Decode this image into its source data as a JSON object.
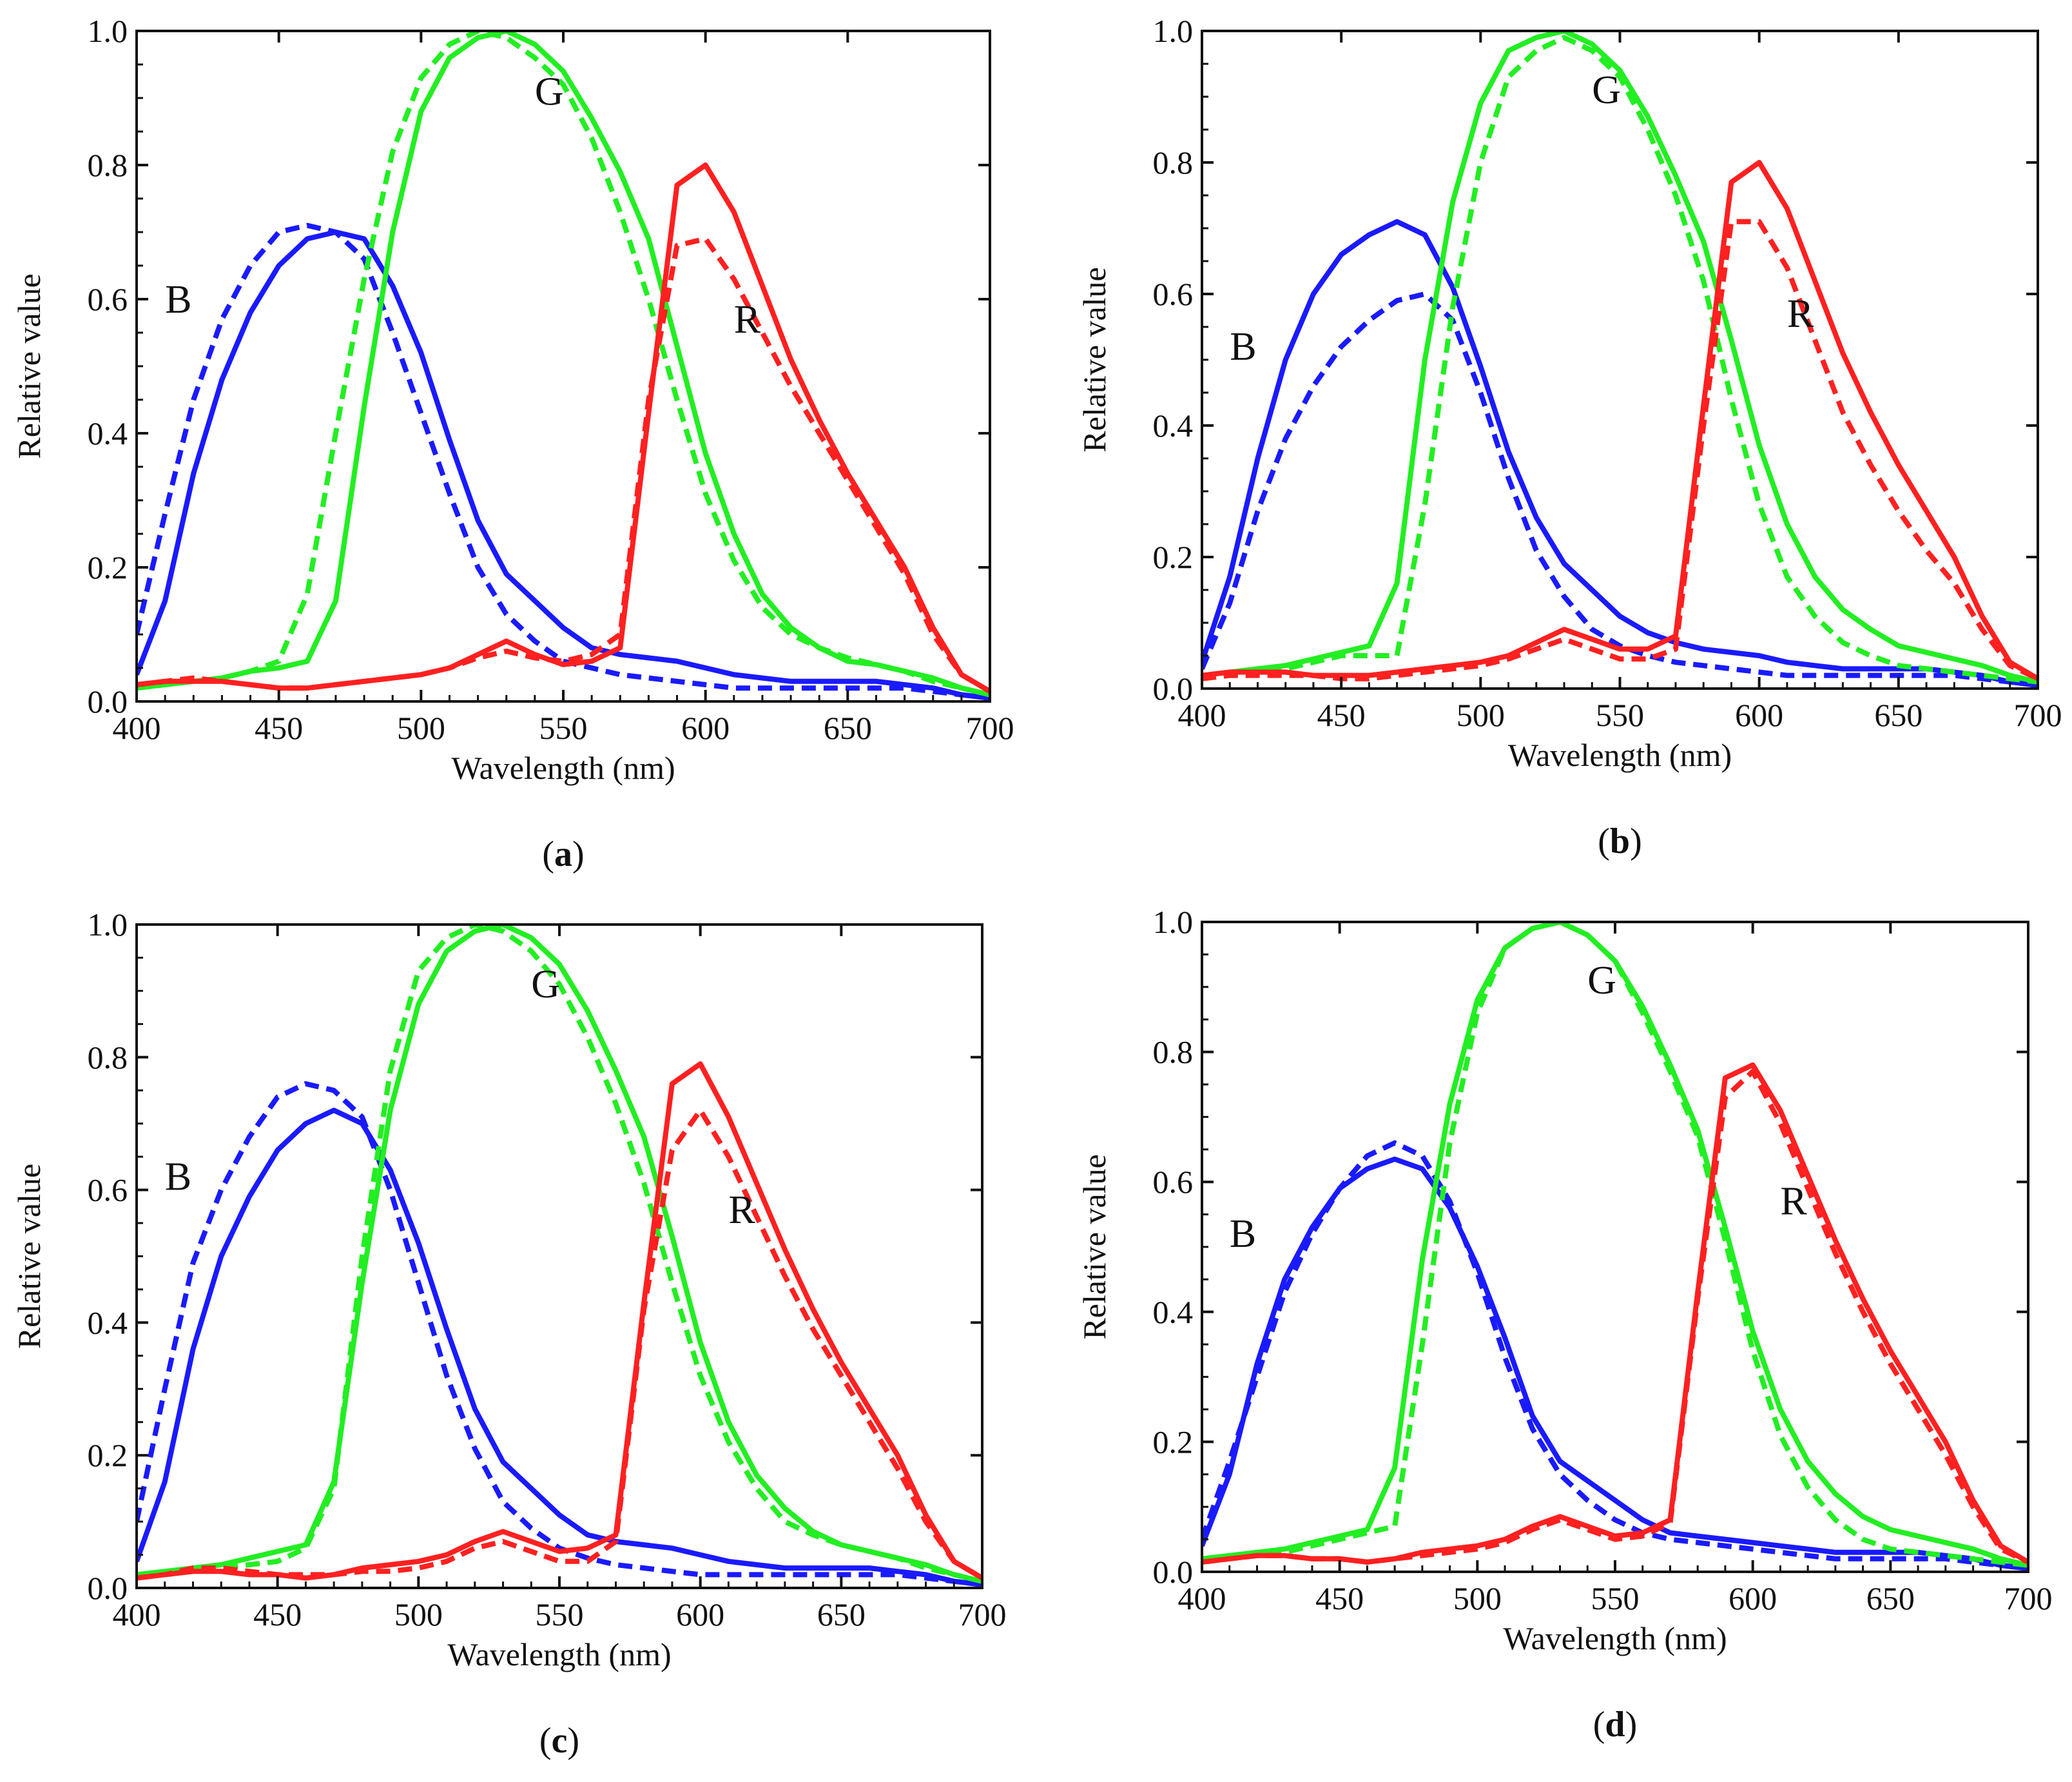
{
  "figure": {
    "xlabel": "Wavelength (nm)",
    "ylabel": "Relative value",
    "xlim": [
      400,
      700
    ],
    "ylim": [
      0,
      1.0
    ],
    "xticks": [
      "400",
      "450",
      "500",
      "550",
      "600",
      "650",
      "700"
    ],
    "yticks": [
      "0.0",
      "0.2",
      "0.4",
      "0.6",
      "0.8",
      "1.0"
    ],
    "colors": {
      "B": "#1a1aff",
      "G": "#22ee22",
      "R": "#ff2020"
    }
  },
  "chart_data": [
    {
      "type": "line",
      "panel": "a",
      "caption_letter": "a",
      "labels": {
        "B": "B",
        "G": "G",
        "R": "R"
      },
      "label_anchor": {
        "B": [
          410,
          0.58
        ],
        "G": [
          540,
          0.89
        ],
        "R": [
          610,
          0.55
        ]
      },
      "x": [
        400,
        410,
        420,
        430,
        440,
        450,
        460,
        470,
        480,
        490,
        500,
        510,
        520,
        530,
        540,
        550,
        560,
        570,
        580,
        590,
        600,
        610,
        620,
        630,
        640,
        650,
        660,
        670,
        680,
        690,
        700
      ],
      "series": [
        {
          "name": "B",
          "style": "solid",
          "values": [
            0.04,
            0.15,
            0.34,
            0.48,
            0.58,
            0.65,
            0.69,
            0.7,
            0.69,
            0.62,
            0.52,
            0.39,
            0.27,
            0.19,
            0.15,
            0.11,
            0.08,
            0.07,
            0.065,
            0.06,
            0.05,
            0.04,
            0.035,
            0.03,
            0.03,
            0.03,
            0.03,
            0.025,
            0.02,
            0.01,
            0.005
          ]
        },
        {
          "name": "B",
          "style": "dashed",
          "values": [
            0.1,
            0.28,
            0.45,
            0.57,
            0.65,
            0.7,
            0.71,
            0.7,
            0.66,
            0.55,
            0.43,
            0.31,
            0.2,
            0.13,
            0.09,
            0.06,
            0.05,
            0.04,
            0.035,
            0.03,
            0.025,
            0.02,
            0.02,
            0.02,
            0.02,
            0.02,
            0.02,
            0.02,
            0.015,
            0.01,
            0.005
          ]
        },
        {
          "name": "G",
          "style": "solid",
          "values": [
            0.02,
            0.025,
            0.03,
            0.035,
            0.045,
            0.05,
            0.06,
            0.15,
            0.44,
            0.7,
            0.88,
            0.96,
            0.99,
            1.0,
            0.98,
            0.94,
            0.87,
            0.79,
            0.69,
            0.53,
            0.37,
            0.25,
            0.16,
            0.11,
            0.08,
            0.06,
            0.055,
            0.045,
            0.035,
            0.02,
            0.01
          ]
        },
        {
          "name": "G",
          "style": "dashed",
          "values": [
            0.02,
            0.025,
            0.03,
            0.035,
            0.045,
            0.06,
            0.16,
            0.4,
            0.63,
            0.82,
            0.93,
            0.98,
            1.0,
            0.99,
            0.96,
            0.92,
            0.84,
            0.73,
            0.6,
            0.45,
            0.31,
            0.21,
            0.14,
            0.1,
            0.08,
            0.065,
            0.055,
            0.045,
            0.03,
            0.02,
            0.01
          ]
        },
        {
          "name": "R",
          "style": "solid",
          "values": [
            0.025,
            0.03,
            0.03,
            0.03,
            0.025,
            0.02,
            0.02,
            0.025,
            0.03,
            0.035,
            0.04,
            0.05,
            0.07,
            0.09,
            0.07,
            0.055,
            0.06,
            0.08,
            0.43,
            0.77,
            0.8,
            0.73,
            0.62,
            0.51,
            0.42,
            0.34,
            0.27,
            0.2,
            0.11,
            0.04,
            0.015
          ]
        },
        {
          "name": "R",
          "style": "dashed",
          "values": [
            0.025,
            0.03,
            0.035,
            0.03,
            0.025,
            0.02,
            0.02,
            0.025,
            0.03,
            0.035,
            0.04,
            0.05,
            0.065,
            0.075,
            0.065,
            0.06,
            0.07,
            0.1,
            0.45,
            0.68,
            0.69,
            0.63,
            0.55,
            0.47,
            0.4,
            0.33,
            0.26,
            0.19,
            0.1,
            0.04,
            0.015
          ]
        }
      ]
    },
    {
      "type": "line",
      "panel": "b",
      "caption_letter": "b",
      "labels": {
        "B": "B",
        "G": "G",
        "R": "R"
      },
      "label_anchor": {
        "B": [
          410,
          0.5
        ],
        "G": [
          540,
          0.89
        ],
        "R": [
          610,
          0.55
        ]
      },
      "x": [
        400,
        410,
        420,
        430,
        440,
        450,
        460,
        470,
        480,
        490,
        500,
        510,
        520,
        530,
        540,
        550,
        560,
        570,
        580,
        590,
        600,
        610,
        620,
        630,
        640,
        650,
        660,
        670,
        680,
        690,
        700
      ],
      "series": [
        {
          "name": "B",
          "style": "solid",
          "values": [
            0.04,
            0.17,
            0.35,
            0.5,
            0.6,
            0.66,
            0.69,
            0.71,
            0.69,
            0.61,
            0.49,
            0.36,
            0.26,
            0.19,
            0.15,
            0.11,
            0.085,
            0.07,
            0.06,
            0.055,
            0.05,
            0.04,
            0.035,
            0.03,
            0.03,
            0.03,
            0.03,
            0.025,
            0.02,
            0.01,
            0.005
          ]
        },
        {
          "name": "B",
          "style": "dashed",
          "values": [
            0.03,
            0.13,
            0.27,
            0.38,
            0.46,
            0.52,
            0.56,
            0.59,
            0.6,
            0.56,
            0.45,
            0.32,
            0.21,
            0.14,
            0.09,
            0.065,
            0.05,
            0.04,
            0.035,
            0.03,
            0.025,
            0.02,
            0.02,
            0.02,
            0.02,
            0.02,
            0.02,
            0.02,
            0.015,
            0.01,
            0.005
          ]
        },
        {
          "name": "G",
          "style": "solid",
          "values": [
            0.02,
            0.025,
            0.03,
            0.035,
            0.045,
            0.055,
            0.065,
            0.16,
            0.5,
            0.74,
            0.89,
            0.97,
            0.99,
            1.0,
            0.98,
            0.94,
            0.87,
            0.78,
            0.68,
            0.53,
            0.37,
            0.25,
            0.17,
            0.12,
            0.09,
            0.065,
            0.055,
            0.045,
            0.035,
            0.02,
            0.01
          ]
        },
        {
          "name": "G",
          "style": "dashed",
          "values": [
            0.015,
            0.02,
            0.025,
            0.03,
            0.04,
            0.05,
            0.05,
            0.05,
            0.28,
            0.58,
            0.8,
            0.93,
            0.97,
            0.99,
            0.97,
            0.93,
            0.85,
            0.75,
            0.62,
            0.44,
            0.28,
            0.17,
            0.11,
            0.07,
            0.05,
            0.035,
            0.03,
            0.025,
            0.02,
            0.015,
            0.01
          ]
        },
        {
          "name": "R",
          "style": "solid",
          "values": [
            0.02,
            0.025,
            0.025,
            0.025,
            0.02,
            0.02,
            0.02,
            0.025,
            0.03,
            0.035,
            0.04,
            0.05,
            0.07,
            0.09,
            0.075,
            0.06,
            0.06,
            0.08,
            0.43,
            0.77,
            0.8,
            0.73,
            0.62,
            0.51,
            0.42,
            0.34,
            0.27,
            0.2,
            0.11,
            0.04,
            0.015
          ]
        },
        {
          "name": "R",
          "style": "dashed",
          "values": [
            0.015,
            0.02,
            0.02,
            0.02,
            0.02,
            0.015,
            0.015,
            0.02,
            0.025,
            0.03,
            0.035,
            0.045,
            0.06,
            0.075,
            0.06,
            0.045,
            0.045,
            0.06,
            0.4,
            0.71,
            0.71,
            0.64,
            0.53,
            0.42,
            0.34,
            0.27,
            0.21,
            0.16,
            0.09,
            0.035,
            0.015
          ]
        }
      ]
    },
    {
      "type": "line",
      "panel": "c",
      "caption_letter": "c",
      "labels": {
        "B": "B",
        "G": "G",
        "R": "R"
      },
      "label_anchor": {
        "B": [
          410,
          0.6
        ],
        "G": [
          540,
          0.89
        ],
        "R": [
          610,
          0.55
        ]
      },
      "x": [
        400,
        410,
        420,
        430,
        440,
        450,
        460,
        470,
        480,
        490,
        500,
        510,
        520,
        530,
        540,
        550,
        560,
        570,
        580,
        590,
        600,
        610,
        620,
        630,
        640,
        650,
        660,
        670,
        680,
        690,
        700
      ],
      "series": [
        {
          "name": "B",
          "style": "solid",
          "values": [
            0.04,
            0.16,
            0.36,
            0.5,
            0.59,
            0.66,
            0.7,
            0.72,
            0.7,
            0.63,
            0.52,
            0.39,
            0.27,
            0.19,
            0.15,
            0.11,
            0.08,
            0.07,
            0.065,
            0.06,
            0.05,
            0.04,
            0.035,
            0.03,
            0.03,
            0.03,
            0.03,
            0.025,
            0.02,
            0.01,
            0.005
          ]
        },
        {
          "name": "B",
          "style": "dashed",
          "values": [
            0.1,
            0.3,
            0.49,
            0.6,
            0.68,
            0.74,
            0.76,
            0.75,
            0.71,
            0.6,
            0.46,
            0.32,
            0.21,
            0.13,
            0.09,
            0.06,
            0.045,
            0.035,
            0.03,
            0.025,
            0.02,
            0.02,
            0.02,
            0.02,
            0.02,
            0.02,
            0.02,
            0.02,
            0.015,
            0.01,
            0.005
          ]
        },
        {
          "name": "G",
          "style": "solid",
          "values": [
            0.02,
            0.025,
            0.03,
            0.035,
            0.045,
            0.055,
            0.065,
            0.16,
            0.46,
            0.72,
            0.88,
            0.96,
            0.99,
            1.0,
            0.98,
            0.94,
            0.87,
            0.78,
            0.68,
            0.53,
            0.37,
            0.25,
            0.17,
            0.12,
            0.085,
            0.065,
            0.055,
            0.045,
            0.035,
            0.02,
            0.01
          ]
        },
        {
          "name": "G",
          "style": "dashed",
          "values": [
            0.02,
            0.02,
            0.025,
            0.03,
            0.035,
            0.04,
            0.06,
            0.15,
            0.5,
            0.78,
            0.93,
            0.98,
            1.0,
            0.99,
            0.96,
            0.91,
            0.83,
            0.73,
            0.61,
            0.46,
            0.32,
            0.22,
            0.15,
            0.1,
            0.08,
            0.065,
            0.055,
            0.045,
            0.03,
            0.02,
            0.01
          ]
        },
        {
          "name": "R",
          "style": "solid",
          "values": [
            0.015,
            0.02,
            0.025,
            0.025,
            0.02,
            0.02,
            0.015,
            0.02,
            0.03,
            0.035,
            0.04,
            0.05,
            0.07,
            0.085,
            0.07,
            0.055,
            0.06,
            0.08,
            0.43,
            0.76,
            0.79,
            0.71,
            0.61,
            0.51,
            0.42,
            0.34,
            0.27,
            0.2,
            0.11,
            0.04,
            0.015
          ]
        },
        {
          "name": "R",
          "style": "dashed",
          "values": [
            0.015,
            0.02,
            0.03,
            0.03,
            0.025,
            0.02,
            0.02,
            0.02,
            0.025,
            0.025,
            0.03,
            0.04,
            0.06,
            0.07,
            0.055,
            0.04,
            0.04,
            0.07,
            0.42,
            0.66,
            0.72,
            0.65,
            0.56,
            0.47,
            0.39,
            0.32,
            0.25,
            0.18,
            0.1,
            0.04,
            0.015
          ]
        }
      ]
    },
    {
      "type": "line",
      "panel": "d",
      "caption_letter": "d",
      "labels": {
        "B": "B",
        "G": "G",
        "R": "R"
      },
      "label_anchor": {
        "B": [
          410,
          0.5
        ],
        "G": [
          540,
          0.89
        ],
        "R": [
          610,
          0.55
        ]
      },
      "x": [
        400,
        410,
        420,
        430,
        440,
        450,
        460,
        470,
        480,
        490,
        500,
        510,
        520,
        530,
        540,
        550,
        560,
        570,
        580,
        590,
        600,
        610,
        620,
        630,
        640,
        650,
        660,
        670,
        680,
        690,
        700
      ],
      "series": [
        {
          "name": "B",
          "style": "solid",
          "values": [
            0.04,
            0.15,
            0.32,
            0.45,
            0.53,
            0.59,
            0.62,
            0.635,
            0.62,
            0.56,
            0.47,
            0.36,
            0.24,
            0.17,
            0.14,
            0.11,
            0.08,
            0.06,
            0.055,
            0.05,
            0.045,
            0.04,
            0.035,
            0.03,
            0.03,
            0.03,
            0.03,
            0.025,
            0.02,
            0.01,
            0.005
          ]
        },
        {
          "name": "B",
          "style": "dashed",
          "values": [
            0.05,
            0.17,
            0.3,
            0.43,
            0.52,
            0.59,
            0.64,
            0.66,
            0.64,
            0.57,
            0.46,
            0.33,
            0.22,
            0.15,
            0.11,
            0.08,
            0.06,
            0.05,
            0.045,
            0.04,
            0.035,
            0.03,
            0.025,
            0.02,
            0.02,
            0.02,
            0.02,
            0.02,
            0.015,
            0.01,
            0.005
          ]
        },
        {
          "name": "G",
          "style": "solid",
          "values": [
            0.02,
            0.025,
            0.03,
            0.035,
            0.045,
            0.055,
            0.065,
            0.16,
            0.48,
            0.72,
            0.88,
            0.96,
            0.99,
            1.0,
            0.98,
            0.94,
            0.87,
            0.78,
            0.68,
            0.53,
            0.37,
            0.25,
            0.17,
            0.12,
            0.085,
            0.065,
            0.055,
            0.045,
            0.035,
            0.02,
            0.01
          ]
        },
        {
          "name": "G",
          "style": "dashed",
          "values": [
            0.015,
            0.02,
            0.025,
            0.03,
            0.04,
            0.05,
            0.06,
            0.07,
            0.35,
            0.66,
            0.86,
            0.96,
            0.99,
            1.0,
            0.98,
            0.94,
            0.86,
            0.77,
            0.67,
            0.51,
            0.34,
            0.21,
            0.13,
            0.08,
            0.05,
            0.035,
            0.03,
            0.025,
            0.02,
            0.015,
            0.01
          ]
        },
        {
          "name": "R",
          "style": "solid",
          "values": [
            0.015,
            0.02,
            0.025,
            0.025,
            0.02,
            0.02,
            0.015,
            0.02,
            0.03,
            0.035,
            0.04,
            0.05,
            0.07,
            0.085,
            0.07,
            0.055,
            0.06,
            0.08,
            0.43,
            0.76,
            0.78,
            0.71,
            0.61,
            0.51,
            0.42,
            0.34,
            0.27,
            0.2,
            0.11,
            0.04,
            0.015
          ]
        },
        {
          "name": "R",
          "style": "dashed",
          "values": [
            0.015,
            0.02,
            0.025,
            0.025,
            0.02,
            0.02,
            0.015,
            0.02,
            0.025,
            0.03,
            0.035,
            0.045,
            0.065,
            0.08,
            0.065,
            0.05,
            0.055,
            0.075,
            0.42,
            0.73,
            0.77,
            0.69,
            0.59,
            0.49,
            0.4,
            0.32,
            0.25,
            0.18,
            0.1,
            0.035,
            0.015
          ]
        }
      ]
    }
  ]
}
